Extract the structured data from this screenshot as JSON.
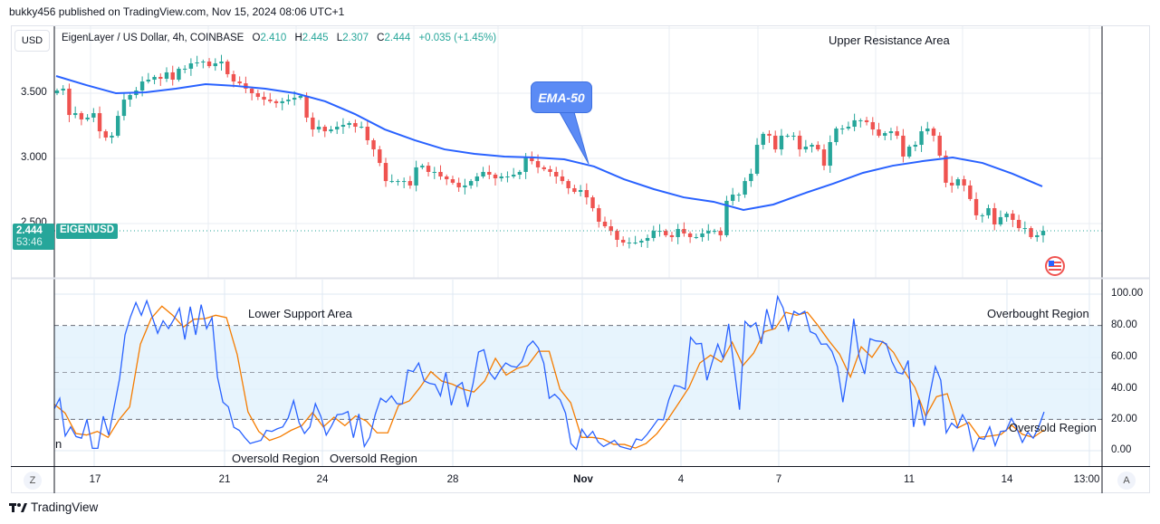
{
  "header": {
    "published": "bukky456 published on TradingView.com, Nov 15, 2024 08:06 UTC+1"
  },
  "legend": {
    "symbol_desc": "EigenLayer / US Dollar, 4h, COINBASE",
    "open_label": "O",
    "open": "2.410",
    "high_label": "H",
    "high": "2.445",
    "low_label": "L",
    "low": "2.307",
    "close_label": "C",
    "close": "2.444",
    "change": "+0.035 (+1.45%)"
  },
  "currency_button": "USD",
  "price_axis": [
    "3.500",
    "3.000",
    "2.500"
  ],
  "last_price": {
    "value": "2.444",
    "countdown": "53:46",
    "symbol": "EIGENUSD"
  },
  "rsi_axis": [
    "100.00",
    "80.00",
    "60.00",
    "40.00",
    "20.00",
    "0.00"
  ],
  "time_axis": [
    "17",
    "21",
    "24",
    "28",
    "Nov",
    "4",
    "7",
    "11",
    "14",
    "13:00"
  ],
  "axis_buttons": {
    "left": "Z",
    "right": "A"
  },
  "annotations": {
    "upper_resistance": "Upper Resistance Area",
    "ema_callout": "EMA-50",
    "lower_support": "Lower Support Area",
    "overbought": "Overbought Region",
    "oversold_right": "Oversold Region",
    "oversold_1": "Oversold Region",
    "oversold_2": "Oversold Region",
    "clipped_text": "n"
  },
  "footer": {
    "brand": "TradingView"
  },
  "colors": {
    "up": "#26a69a",
    "down": "#ef5350",
    "ema": "#2962ff",
    "rsi": "#2962ff",
    "rsi_signal": "#f57c00",
    "band": "#e3f2fd"
  },
  "chart_data": [
    {
      "type": "candlestick",
      "symbol": "EIGENUSD",
      "interval": "4h",
      "ylim": [
        2.2,
        3.85
      ],
      "close": [
        3.521,
        3.535,
        3.333,
        3.347,
        3.299,
        3.313,
        3.347,
        3.208,
        3.16,
        3.174,
        3.326,
        3.451,
        3.486,
        3.521,
        3.59,
        3.604,
        3.625,
        3.611,
        3.66,
        3.604,
        3.688,
        3.688,
        3.729,
        3.736,
        3.743,
        3.708,
        3.729,
        3.743,
        3.646,
        3.59,
        3.576,
        3.535,
        3.5,
        3.472,
        3.451,
        3.438,
        3.424,
        3.438,
        3.451,
        3.465,
        3.479,
        3.313,
        3.222,
        3.243,
        3.208,
        3.222,
        3.243,
        3.257,
        3.271,
        3.243,
        3.243,
        3.139,
        3.069,
        2.965,
        2.826,
        2.826,
        2.826,
        2.826,
        2.792,
        2.931,
        2.944,
        2.896,
        2.896,
        2.861,
        2.84,
        2.813,
        2.778,
        2.792,
        2.826,
        2.861,
        2.896,
        2.875,
        2.847,
        2.861,
        2.861,
        2.875,
        2.896,
        3.014,
        2.979,
        2.931,
        2.917,
        2.896,
        2.861,
        2.826,
        2.771,
        2.743,
        2.757,
        2.701,
        2.618,
        2.514,
        2.479,
        2.444,
        2.375,
        2.354,
        2.354,
        2.354,
        2.368,
        2.389,
        2.444,
        2.444,
        2.41,
        2.396,
        2.458,
        2.424,
        2.396,
        2.396,
        2.424,
        2.444,
        2.444,
        2.41,
        2.674,
        2.722,
        2.722,
        2.826,
        2.882,
        3.104,
        3.188,
        3.174,
        3.069,
        3.174,
        3.174,
        3.174,
        3.069,
        3.09,
        3.104,
        3.069,
        2.944,
        3.125,
        3.229,
        3.229,
        3.243,
        3.292,
        3.292,
        3.278,
        3.222,
        3.174,
        3.194,
        3.208,
        3.174,
        3.014,
        3.09,
        3.104,
        3.208,
        3.229,
        3.174,
        3.021,
        2.813,
        2.792,
        2.84,
        2.792,
        2.688,
        2.563,
        2.563,
        2.618,
        2.493,
        2.549,
        2.576,
        2.528,
        2.465,
        2.465,
        2.396,
        2.41,
        2.444
      ],
      "ema50": [
        3.632,
        3.563,
        3.5,
        3.507,
        3.535,
        3.569,
        3.556,
        3.535,
        3.5,
        3.438,
        3.34,
        3.222,
        3.139,
        3.069,
        3.035,
        3.014,
        3.007,
        2.993,
        2.938,
        2.84,
        2.764,
        2.701,
        2.667,
        2.604,
        2.646,
        2.729,
        2.806,
        2.889,
        2.944,
        2.979,
        3.007,
        2.965,
        2.882,
        2.785
      ]
    },
    {
      "type": "line",
      "indicator": "RSI",
      "ylim": [
        0,
        100
      ],
      "levels": [
        80,
        50,
        20
      ],
      "rsi": [
        26.8,
        33.5,
        9.4,
        15.2,
        9,
        8,
        20,
        1.5,
        1.5,
        22,
        10,
        28,
        46,
        74,
        85.5,
        94.6,
        86.5,
        95.8,
        85.5,
        75,
        83,
        78,
        84,
        91,
        71,
        92,
        74,
        93.3,
        78,
        85,
        47,
        31,
        28,
        15,
        13,
        8.5,
        4.6,
        5.6,
        6.6,
        13,
        12.3,
        14,
        15.2,
        21,
        32,
        18,
        11,
        15.2,
        30,
        22,
        10,
        16,
        23,
        23.4,
        25,
        8.3,
        23.5,
        2.7,
        8.5,
        23,
        33.5,
        31,
        35,
        30,
        30,
        51.5,
        50.5,
        56,
        44.6,
        43,
        42.3,
        35,
        50,
        29,
        41,
        43.5,
        28,
        43,
        63,
        64.5,
        50,
        45.7,
        51.5,
        56,
        54,
        53.3,
        57,
        66.5,
        70,
        65.6,
        56,
        33.5,
        36,
        32.6,
        24,
        4.6,
        0.8,
        13.7,
        8.5,
        12.3,
        5.6,
        2.7,
        4.6,
        6.6,
        2.7,
        1.7,
        0.8,
        7.5,
        6.6,
        10.4,
        15.2,
        20,
        19.7,
        32.6,
        41.7,
        41,
        39.3,
        72.4,
        68.2,
        68.5,
        45,
        57,
        68,
        59,
        81,
        53,
        26.2,
        82.6,
        79,
        81.7,
        68.2,
        90.4,
        77.5,
        98.4,
        91.3,
        77,
        89,
        87,
        89,
        76,
        74.4,
        68,
        68.2,
        63.4,
        53.7,
        31,
        53,
        84.3,
        60,
        49,
        71.5,
        70.2,
        69.8,
        68.2,
        57,
        50,
        49,
        57.6,
        15.2,
        32.6,
        16,
        36.4,
        53.7,
        45,
        11.4,
        17.6,
        14.6,
        23,
        16.6,
        0,
        8,
        7.3,
        15.2,
        3.3,
        12.3,
        12.7,
        20.6,
        14,
        5.3,
        11.8,
        8,
        15.2,
        24.8
      ],
      "signal": [
        29.6,
        24,
        11,
        10,
        12.3,
        8.5,
        19.6,
        28,
        68,
        84.5,
        92.3,
        86.5,
        79,
        84,
        84.3,
        86.5,
        85,
        61.4,
        24.8,
        12.3,
        6.6,
        9,
        13,
        16,
        24.3,
        15.2,
        21.4,
        16,
        22.2,
        19,
        11.4,
        11.4,
        29,
        31.8,
        40.5,
        50.5,
        44.5,
        42.5,
        39.3,
        37.5,
        44.5,
        59,
        48.3,
        52.5,
        54.4,
        63.5,
        63.5,
        39.3,
        30.6,
        8.5,
        8.5,
        7.5,
        4,
        4,
        1.7,
        4.6,
        10.8,
        19.7,
        30,
        40.5,
        56,
        61,
        56.6,
        69.3,
        54.4,
        62.3,
        76,
        78,
        88.4,
        86.5,
        88.4,
        79.8,
        70.2,
        61.6,
        47.1,
        66.4,
        59.6,
        69.8,
        62.8,
        50.9,
        40.3,
        22,
        34.5,
        36.4,
        14.6,
        18.1,
        8.5,
        9.4,
        10.4,
        16.2,
        10.4,
        8.5,
        13.3
      ]
    }
  ]
}
